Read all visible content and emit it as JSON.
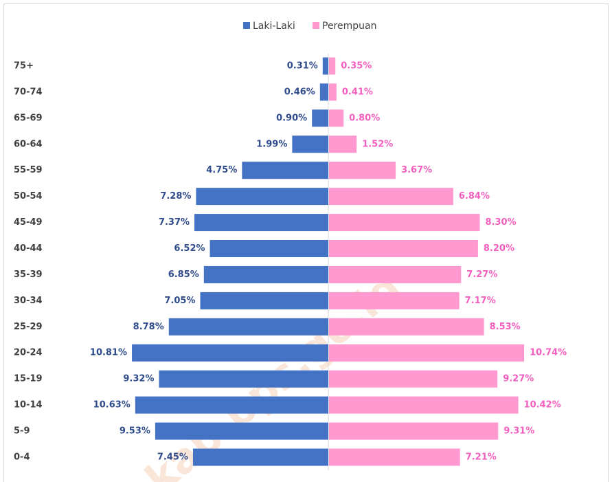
{
  "chart_data": {
    "type": "pyramid",
    "categories": [
      "75+",
      "70-74",
      "65-69",
      "60-64",
      "55-59",
      "50-54",
      "45-49",
      "40-44",
      "35-39",
      "30-34",
      "25-29",
      "20-24",
      "15-19",
      "10-14",
      "5-9",
      "0-4"
    ],
    "series": [
      {
        "name": "Laki-Laki",
        "color": "#4472c4",
        "label_color": "#2f4b8c",
        "values": [
          0.31,
          0.46,
          0.9,
          1.99,
          4.75,
          7.28,
          7.37,
          6.52,
          6.85,
          7.05,
          8.78,
          10.81,
          9.32,
          10.63,
          9.53,
          7.45
        ],
        "value_labels": [
          "0.31%",
          "0.46%",
          "0.90%",
          "1.99%",
          "4.75%",
          "7.28%",
          "7.37%",
          "6.52%",
          "6.85%",
          "7.05%",
          "8.78%",
          "10.81%",
          "9.32%",
          "10.63%",
          "9.53%",
          "7.45%"
        ]
      },
      {
        "name": "Perempuan",
        "color": "#ff99d0",
        "label_color": "#f25fbf",
        "values": [
          0.35,
          0.41,
          0.8,
          1.52,
          3.67,
          6.84,
          8.3,
          8.2,
          7.27,
          7.17,
          8.53,
          10.74,
          9.27,
          10.42,
          9.31,
          7.21
        ],
        "value_labels": [
          "0.35%",
          "0.41%",
          "0.80%",
          "1.52%",
          "3.67%",
          "6.84%",
          "8.30%",
          "8.20%",
          "7.27%",
          "7.17%",
          "8.53%",
          "10.74%",
          "9.27%",
          "10.42%",
          "9.31%",
          "7.21%"
        ]
      }
    ],
    "legend": "top",
    "watermark": "kab.bps.go.id"
  }
}
